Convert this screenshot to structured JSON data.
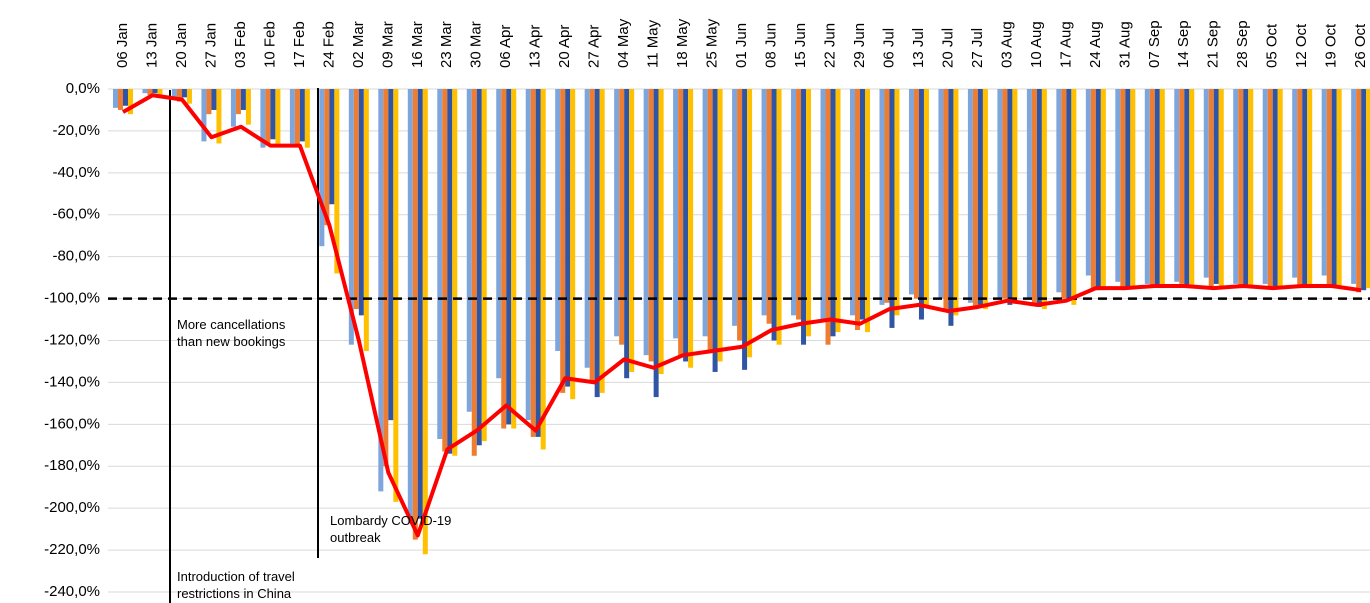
{
  "chart_data": {
    "type": "bar",
    "categories": [
      "06 Jan",
      "13 Jan",
      "20 Jan",
      "27 Jan",
      "03 Feb",
      "10 Feb",
      "17 Feb",
      "24 Feb",
      "02 Mar",
      "09 Mar",
      "16 Mar",
      "23 Mar",
      "30 Mar",
      "06 Apr",
      "13 Apr",
      "20 Apr",
      "27 Apr",
      "04 May",
      "11 May",
      "18 May",
      "25 May",
      "01 Jun",
      "08 Jun",
      "15 Jun",
      "22 Jun",
      "29 Jun",
      "06 Jul",
      "13 Jul",
      "20 Jul",
      "27 Jul",
      "03 Aug",
      "10 Aug",
      "17 Aug",
      "24 Aug",
      "31 Aug",
      "07 Sep",
      "14 Sep",
      "21 Sep",
      "28 Sep",
      "05 Oct",
      "12 Oct",
      "19 Oct",
      "26 Oct"
    ],
    "series": [
      {
        "type": "bar",
        "color": "#7ea6dc",
        "values": [
          -9,
          -2,
          -5,
          -25,
          -18,
          -28,
          -26,
          -75,
          -122,
          -192,
          -207,
          -167,
          -154,
          -138,
          -158,
          -125,
          -133,
          -118,
          -127,
          -119,
          -118,
          -113,
          -108,
          -108,
          -110,
          -108,
          -103,
          -98,
          -100,
          -102,
          -100,
          -100,
          -97,
          -89,
          -92,
          -93,
          -92,
          -90,
          -93,
          -93,
          -90,
          -89,
          -93
        ]
      },
      {
        "type": "bar",
        "color": "#ed7d31",
        "values": [
          -10,
          -3,
          -6,
          -12,
          -12,
          -27,
          -27,
          -65,
          -105,
          -180,
          -215,
          -173,
          -175,
          -162,
          -166,
          -145,
          -140,
          -122,
          -130,
          -127,
          -125,
          -120,
          -112,
          -110,
          -122,
          -115,
          -102,
          -100,
          -106,
          -104,
          -100,
          -103,
          -100,
          -96,
          -96,
          -94,
          -93,
          -94,
          -94,
          -95,
          -94,
          -94,
          -97
        ]
      },
      {
        "type": "bar",
        "color": "#2f55a4",
        "values": [
          -8,
          -2,
          -4,
          -10,
          -10,
          -24,
          -25,
          -55,
          -108,
          -158,
          -205,
          -174,
          -170,
          -160,
          -166,
          -142,
          -147,
          -138,
          -147,
          -130,
          -135,
          -134,
          -120,
          -122,
          -118,
          -110,
          -114,
          -110,
          -113,
          -103,
          -103,
          -104,
          -101,
          -96,
          -95,
          -94,
          -94,
          -93,
          -94,
          -94,
          -94,
          -95,
          -96
        ]
      },
      {
        "type": "bar",
        "color": "#ffc000",
        "values": [
          -12,
          -3,
          -7,
          -26,
          -17,
          -26,
          -28,
          -88,
          -125,
          -197,
          -222,
          -175,
          -168,
          -162,
          -172,
          -148,
          -145,
          -135,
          -136,
          -133,
          -130,
          -128,
          -122,
          -118,
          -116,
          -116,
          -108,
          -104,
          -108,
          -105,
          -102,
          -105,
          -103,
          -96,
          -95,
          -95,
          -94,
          -95,
          -95,
          -95,
          -95,
          -95,
          -95
        ]
      },
      {
        "type": "line",
        "color": "#ff0000",
        "values": [
          -11,
          -3,
          -5,
          -23,
          -18,
          -27,
          -27,
          -65,
          -120,
          -183,
          -213,
          -172,
          -163,
          -151,
          -163,
          -138,
          -140,
          -129,
          -133,
          -127,
          -125,
          -123,
          -115,
          -112,
          -110,
          -112,
          -105,
          -103,
          -106,
          -104,
          -101,
          -103,
          -101,
          -95,
          -95,
          -94,
          -94,
          -95,
          -94,
          -95,
          -94,
          -94,
          -96
        ]
      }
    ],
    "ylim": [
      -240,
      0
    ],
    "yticks": [
      {
        "value": 0,
        "label": "0,0%"
      },
      {
        "value": -20,
        "label": "-20,0%"
      },
      {
        "value": -40,
        "label": "-40,0%"
      },
      {
        "value": -60,
        "label": "-60,0%"
      },
      {
        "value": -80,
        "label": "-80,0%"
      },
      {
        "value": -100,
        "label": "-100,0%"
      },
      {
        "value": -120,
        "label": "-120,0%"
      },
      {
        "value": -140,
        "label": "-140,0%"
      },
      {
        "value": -160,
        "label": "-160,0%"
      },
      {
        "value": -180,
        "label": "-180,0%"
      },
      {
        "value": -200,
        "label": "-200,0%"
      },
      {
        "value": -220,
        "label": "-220,0%"
      },
      {
        "value": -240,
        "label": "-240,0%"
      }
    ],
    "grid": true,
    "reference_line": -100,
    "annotations": [
      {
        "lines": [
          "More cancellations",
          "than new bookings"
        ]
      },
      {
        "lines": [
          "Lombardy COVID-19",
          "outbreak"
        ]
      },
      {
        "lines": [
          "Introduction of travel",
          "restrictions in China"
        ]
      }
    ]
  }
}
